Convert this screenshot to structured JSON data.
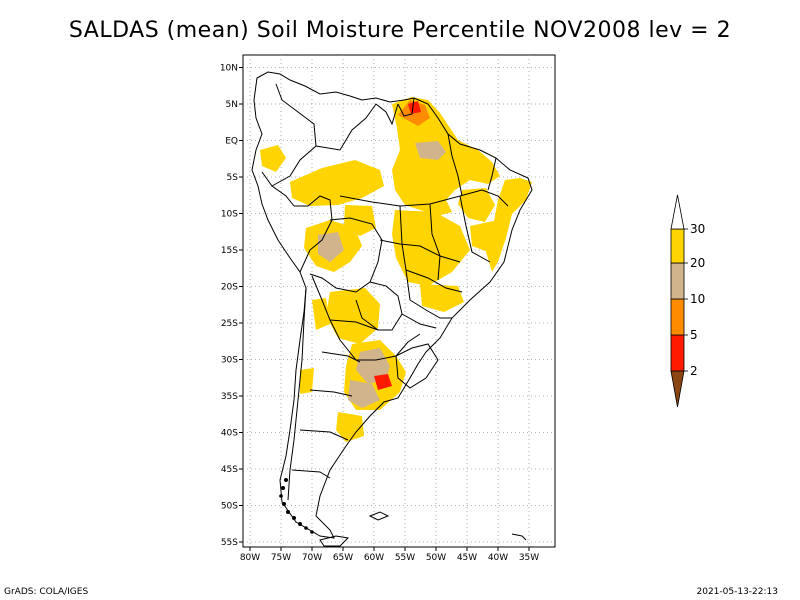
{
  "title": "SALDAS (mean) Soil Moisture Percentile NOV2008 lev = 2",
  "lat_labels": [
    "10N",
    "5N",
    "EQ",
    "5S",
    "10S",
    "15S",
    "20S",
    "25S",
    "30S",
    "35S",
    "40S",
    "45S",
    "50S",
    "55S"
  ],
  "lon_labels": [
    "80W",
    "75W",
    "70W",
    "65W",
    "60W",
    "55W",
    "50W",
    "45W",
    "40W",
    "35W"
  ],
  "legend": {
    "labels": [
      "2",
      "5",
      "10",
      "20",
      "30"
    ],
    "colors": [
      "#8b4513",
      "#ff1a00",
      "#ff8c00",
      "#d2b48c",
      "#ffd400",
      "#ffffff"
    ]
  },
  "footer": {
    "left": "GrADS: COLA/IGES",
    "right": "2021-05-13-22:13"
  },
  "colors": {
    "yellow": "#ffd400",
    "tan": "#d2b48c",
    "orange": "#ff8c00",
    "red": "#ff1a00"
  }
}
